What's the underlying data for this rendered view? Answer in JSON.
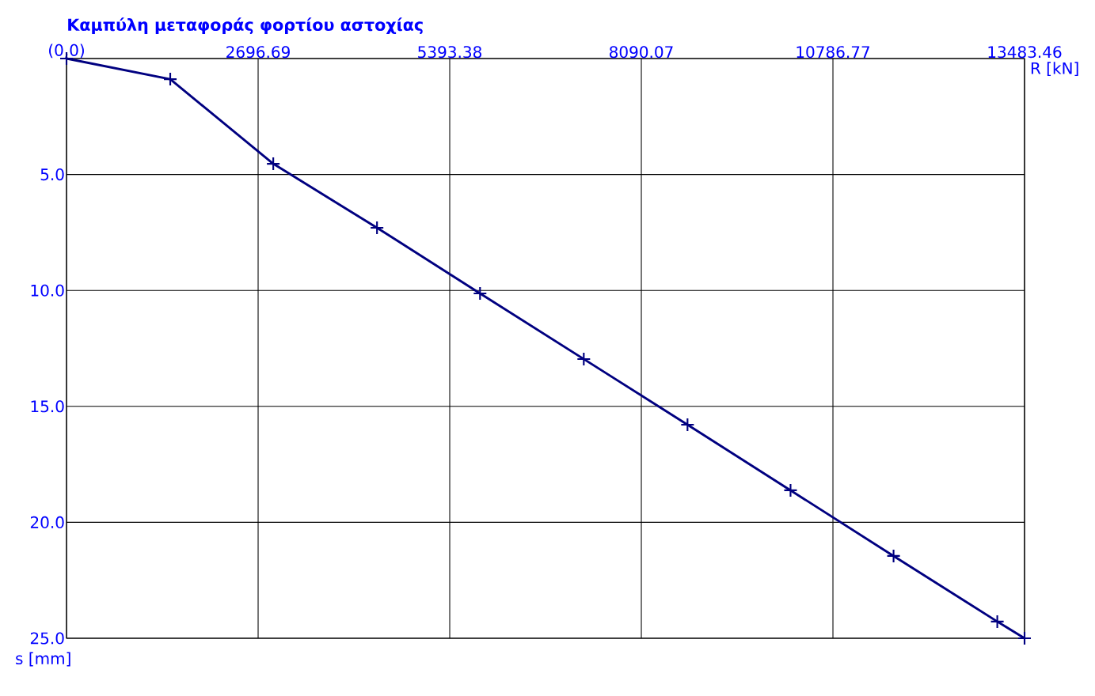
{
  "chart_data": {
    "type": "line",
    "title": "Καμπύλη μεταφοράς φορτίου αστοχίας",
    "xlabel": "R [kN]",
    "ylabel": "s [mm]",
    "x": [
      0,
      1460,
      2910,
      4370,
      5820,
      7280,
      8740,
      10190,
      11640,
      13100,
      13483.46
    ],
    "series": [
      {
        "color": "#000080",
        "values": [
          0,
          0.89,
          4.54,
          7.3,
          10.13,
          12.96,
          15.79,
          18.62,
          21.45,
          24.28,
          25.0
        ]
      }
    ],
    "xlim": [
      0,
      13483.46
    ],
    "xticks": [
      {
        "value": 0,
        "label": "(0,0)"
      },
      {
        "value": 2696.69,
        "label": "2696.69"
      },
      {
        "value": 5393.38,
        "label": "5393.38"
      },
      {
        "value": 8090.07,
        "label": "8090.07"
      },
      {
        "value": 10786.77,
        "label": "10786.77"
      },
      {
        "value": 13483.46,
        "label": "13483.46"
      }
    ],
    "ylim": [
      25,
      0
    ],
    "yticks": [
      {
        "value": 0,
        "label": null
      },
      {
        "value": 5,
        "label": "5.0"
      },
      {
        "value": 10,
        "label": "10.0"
      },
      {
        "value": 15,
        "label": "15.0"
      },
      {
        "value": 20,
        "label": "20.0"
      },
      {
        "value": 25,
        "label": "25.0"
      }
    ],
    "grid": true,
    "marker": "cross",
    "line_style": "solid"
  }
}
